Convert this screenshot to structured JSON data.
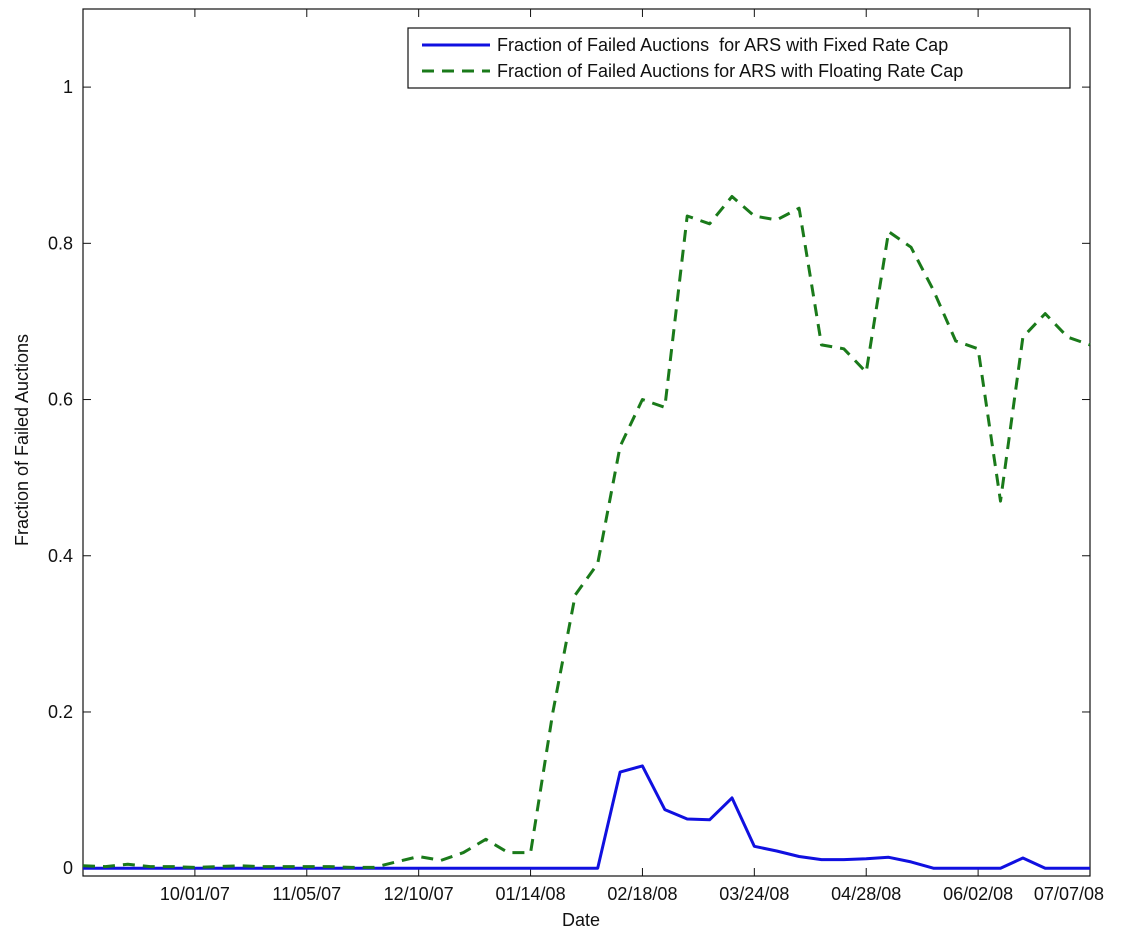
{
  "chart_data": {
    "type": "line",
    "xlabel": "Date",
    "ylabel": "Fraction of Failed Auctions",
    "x_tick_labels": [
      "10/01/07",
      "11/05/07",
      "12/10/07",
      "01/14/08",
      "02/18/08",
      "03/24/08",
      "04/28/08",
      "06/02/08",
      "07/07/08"
    ],
    "y_tick_labels": [
      "0",
      "0.2",
      "0.4",
      "0.6",
      "0.8",
      "1"
    ],
    "y_ticks": [
      0,
      0.2,
      0.4,
      0.6,
      0.8,
      1.0
    ],
    "xlim": [
      "2007-08-27",
      "2008-07-07"
    ],
    "ylim": [
      -0.01,
      1.1
    ],
    "grid": false,
    "legend_position": "top-right",
    "x": [
      "2007-08-27",
      "2007-09-03",
      "2007-09-10",
      "2007-09-17",
      "2007-09-24",
      "2007-10-01",
      "2007-10-08",
      "2007-10-15",
      "2007-10-22",
      "2007-10-29",
      "2007-11-05",
      "2007-11-12",
      "2007-11-19",
      "2007-11-26",
      "2007-12-03",
      "2007-12-10",
      "2007-12-17",
      "2007-12-24",
      "2007-12-31",
      "2008-01-07",
      "2008-01-14",
      "2008-01-21",
      "2008-01-28",
      "2008-02-04",
      "2008-02-11",
      "2008-02-18",
      "2008-02-25",
      "2008-03-03",
      "2008-03-10",
      "2008-03-17",
      "2008-03-24",
      "2008-03-31",
      "2008-04-07",
      "2008-04-14",
      "2008-04-21",
      "2008-04-28",
      "2008-05-05",
      "2008-05-12",
      "2008-05-19",
      "2008-05-26",
      "2008-06-02",
      "2008-06-09",
      "2008-06-16",
      "2008-06-23",
      "2008-06-30",
      "2008-07-07"
    ],
    "series": [
      {
        "name": "Fraction of Failed Auctions  for ARS with Fixed Rate Cap",
        "color": "#1010e0",
        "style": "solid",
        "values": [
          0.0,
          0.0,
          0.0,
          0.0,
          0.0,
          0.0,
          0.0,
          0.0,
          0.0,
          0.0,
          0.0,
          0.0,
          0.0,
          0.0,
          0.0,
          0.0,
          0.0,
          0.0,
          0.0,
          0.0,
          0.0,
          0.0,
          0.0,
          0.0,
          0.123,
          0.131,
          0.075,
          0.063,
          0.062,
          0.09,
          0.028,
          0.022,
          0.015,
          0.011,
          0.011,
          0.012,
          0.014,
          0.008,
          0.0,
          0.0,
          0.0,
          0.0,
          0.013,
          0.0,
          0.0,
          0.0
        ]
      },
      {
        "name": "Fraction of Failed Auctions for ARS with Floating Rate Cap",
        "color": "#1a7a1a",
        "style": "dashed",
        "values": [
          0.003,
          0.002,
          0.005,
          0.002,
          0.002,
          0.001,
          0.002,
          0.003,
          0.002,
          0.002,
          0.002,
          0.002,
          0.001,
          0.001,
          0.008,
          0.015,
          0.01,
          0.02,
          0.037,
          0.02,
          0.02,
          0.2,
          0.35,
          0.39,
          0.54,
          0.6,
          0.59,
          0.835,
          0.825,
          0.86,
          0.835,
          0.83,
          0.845,
          0.67,
          0.665,
          0.635,
          0.815,
          0.795,
          0.74,
          0.675,
          0.665,
          0.47,
          0.68,
          0.71,
          0.68,
          0.67
        ]
      }
    ]
  }
}
